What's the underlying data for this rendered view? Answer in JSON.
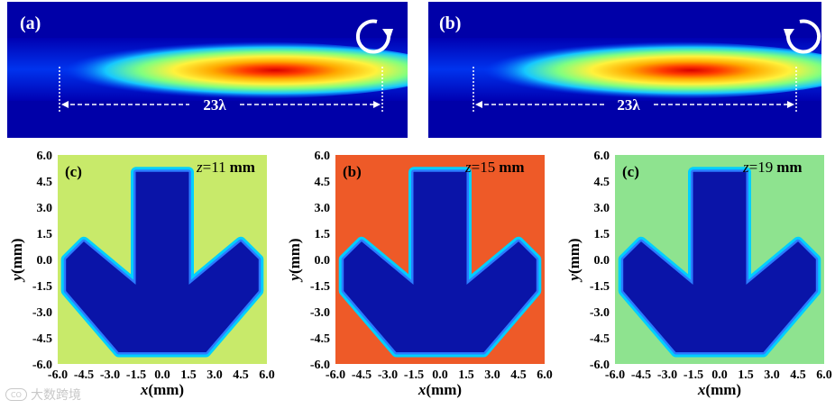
{
  "figure": {
    "beam_panels": [
      {
        "label": "(a)",
        "width_annotation": "23λ",
        "rotation": "counter-clockwise-circle-icon"
      },
      {
        "label": "(b)",
        "width_annotation": "23λ",
        "rotation": "clockwise-circle-icon"
      }
    ],
    "maps": [
      {
        "label": "(c)",
        "z_prefix": "z",
        "z_value": "=11",
        "z_unit": "mm",
        "background": "#c8ea6a"
      },
      {
        "label": "(b)",
        "z_prefix": "z",
        "z_value": "=15",
        "z_unit": "mm",
        "background": "#ee5a28"
      },
      {
        "label": "(c)",
        "z_prefix": "z",
        "z_value": "=19",
        "z_unit": "mm",
        "background": "#8ee38f"
      }
    ],
    "watermark": {
      "text": "大数跨境",
      "icon": "watermark-logo-icon",
      "icon_text": "CO"
    }
  },
  "chart_data": [
    {
      "type": "heatmap",
      "title": "",
      "panel_label": "(c)",
      "annotation": "z=11 mm",
      "xlabel": "x(mm)",
      "ylabel": "y(mm)",
      "xlim": [
        -6.0,
        6.0
      ],
      "ylim": [
        -6.0,
        6.0
      ],
      "xticks": [
        "-6.0",
        "-4.5",
        "-3.0",
        "-1.5",
        "0.0",
        "1.5",
        "3.0",
        "4.5",
        "6.0"
      ],
      "yticks": [
        "6.0",
        "4.5",
        "3.0",
        "1.5",
        "0.0",
        "-1.5",
        "-3.0",
        "-4.5",
        "-6.0"
      ],
      "shape": "downward arrow",
      "arrow_outline_mm": [
        [
          -1.5,
          5.0
        ],
        [
          1.5,
          5.0
        ],
        [
          1.5,
          -1.5
        ],
        [
          4.5,
          1.0
        ],
        [
          5.5,
          0.0
        ],
        [
          5.5,
          -1.8
        ],
        [
          2.5,
          -5.3
        ],
        [
          -2.5,
          -5.3
        ],
        [
          -5.5,
          -1.8
        ],
        [
          -5.5,
          0.0
        ],
        [
          -4.5,
          1.0
        ],
        [
          -1.5,
          -1.5
        ]
      ]
    },
    {
      "type": "heatmap",
      "title": "",
      "panel_label": "(b)",
      "annotation": "z=15 mm",
      "xlabel": "x(mm)",
      "ylabel": "y(mm)",
      "xlim": [
        -6.0,
        6.0
      ],
      "ylim": [
        -6.0,
        6.0
      ],
      "xticks": [
        "-6.0",
        "-4.5",
        "-3.0",
        "-1.5",
        "0.0",
        "1.5",
        "3.0",
        "4.5",
        "6.0"
      ],
      "yticks": [
        "6.0",
        "4.5",
        "3.0",
        "1.5",
        "0.0",
        "-1.5",
        "-3.0",
        "-4.5",
        "-6.0"
      ],
      "shape": "downward arrow",
      "arrow_outline_mm": [
        [
          -1.5,
          5.0
        ],
        [
          1.5,
          5.0
        ],
        [
          1.5,
          -1.5
        ],
        [
          4.5,
          1.0
        ],
        [
          5.5,
          0.0
        ],
        [
          5.5,
          -1.8
        ],
        [
          2.5,
          -5.3
        ],
        [
          -2.5,
          -5.3
        ],
        [
          -5.5,
          -1.8
        ],
        [
          -5.5,
          0.0
        ],
        [
          -4.5,
          1.0
        ],
        [
          -1.5,
          -1.5
        ]
      ]
    },
    {
      "type": "heatmap",
      "title": "",
      "panel_label": "(c)",
      "annotation": "z=19 mm",
      "xlabel": "x(mm)",
      "ylabel": "y(mm)",
      "xlim": [
        -6.0,
        6.0
      ],
      "ylim": [
        -6.0,
        6.0
      ],
      "xticks": [
        "-6.0",
        "-4.5",
        "-3.0",
        "-1.5",
        "0.0",
        "1.5",
        "3.0",
        "4.5",
        "6.0"
      ],
      "yticks": [
        "6.0",
        "4.5",
        "3.0",
        "1.5",
        "0.0",
        "-1.5",
        "-3.0",
        "-4.5",
        "-6.0"
      ],
      "shape": "downward arrow",
      "arrow_outline_mm": [
        [
          -1.5,
          5.0
        ],
        [
          1.5,
          5.0
        ],
        [
          1.5,
          -1.5
        ],
        [
          4.5,
          1.0
        ],
        [
          5.5,
          0.0
        ],
        [
          5.5,
          -1.8
        ],
        [
          2.5,
          -5.3
        ],
        [
          -2.5,
          -5.3
        ],
        [
          -5.5,
          -1.8
        ],
        [
          -5.5,
          0.0
        ],
        [
          -4.5,
          1.0
        ],
        [
          -1.5,
          -1.5
        ]
      ]
    }
  ]
}
